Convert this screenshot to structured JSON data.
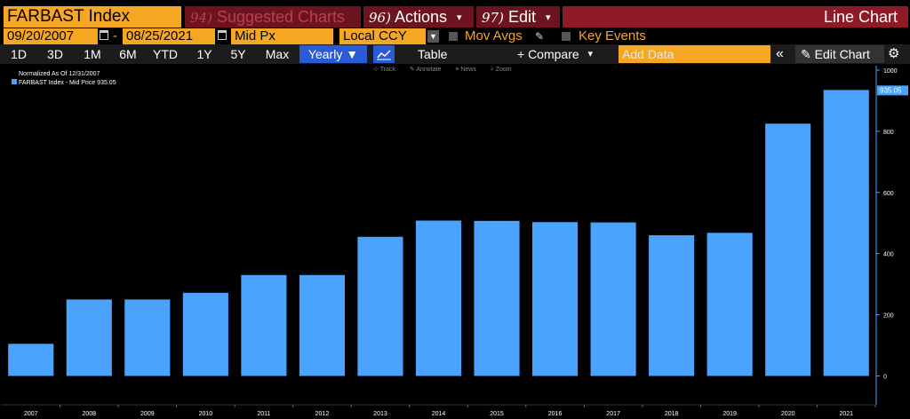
{
  "header": {
    "ticker": "FARBAST Index",
    "suggested_num": "94)",
    "suggested_label": "Suggested Charts",
    "actions_num": "96)",
    "actions_label": "Actions",
    "edit_num": "97)",
    "edit_label": "Edit",
    "chart_kind": "Line Chart"
  },
  "controls": {
    "start_date": "09/20/2007",
    "end_date": "08/25/2021",
    "price_field": "Mid Px",
    "currency": "Local CCY",
    "mov_avgs": "Mov Avgs",
    "key_events": "Key Events"
  },
  "toolbar": {
    "ranges": [
      "1D",
      "3D",
      "1M",
      "6M",
      "YTD",
      "1Y",
      "5Y",
      "Max"
    ],
    "period": "Yearly ▼",
    "table_label": "Table",
    "compare_label": "+ Compare",
    "add_data_placeholder": "Add Data",
    "edit_chart_label": "Edit Chart"
  },
  "mini_tools": [
    "Track",
    "Annotate",
    "News",
    "Zoom"
  ],
  "colors": {
    "bar": "#4aa3ff",
    "accent": "#f5a623",
    "header_red": "#8e1a26"
  },
  "chart_data": {
    "type": "bar",
    "title": "FARBAST Index",
    "normalized_note": "Normalized As Of 12/31/2007",
    "legend": "FARBAST Index - Mid Price 935.05",
    "last_value_label": "935.05",
    "categories": [
      "2007",
      "2008",
      "2009",
      "2010",
      "2011",
      "2012",
      "2013",
      "2014",
      "2015",
      "2016",
      "2017",
      "2018",
      "2019",
      "2020",
      "2021"
    ],
    "values": [
      105,
      250,
      250,
      272,
      330,
      330,
      455,
      508,
      507,
      503,
      502,
      460,
      468,
      825,
      935.05
    ],
    "ylim": [
      -10,
      1000
    ],
    "yticks": [
      0,
      200,
      400,
      600,
      800,
      1000
    ],
    "xlabel": "",
    "ylabel": ""
  }
}
